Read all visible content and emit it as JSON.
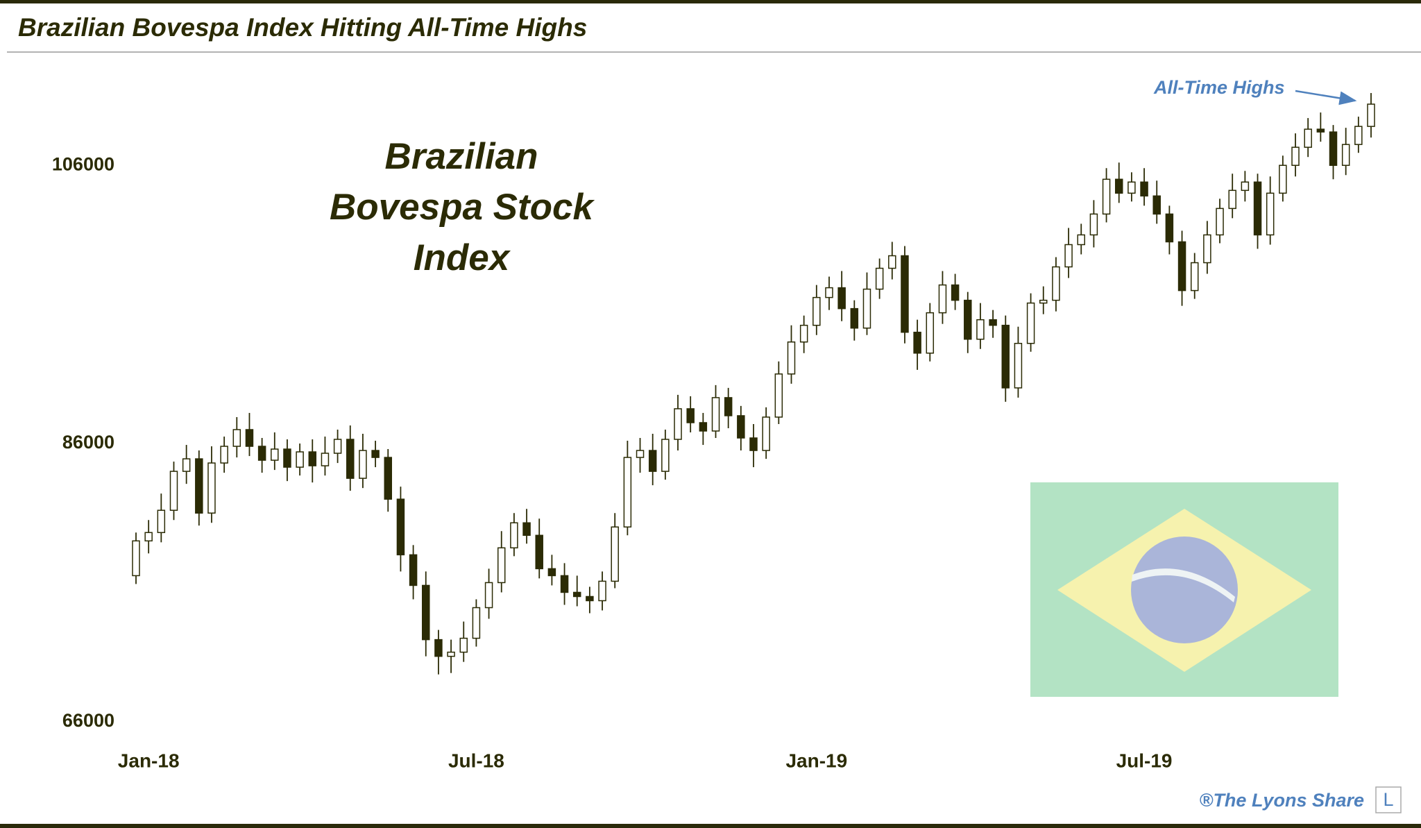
{
  "chart_data": {
    "type": "candlestick",
    "title": "Brazilian Bovespa Index Hitting All-Time Highs",
    "annotation_lines": [
      "Brazilian",
      "Bovespa Stock",
      "Index"
    ],
    "highlight_label": "All-Time Highs",
    "credit": "®The Lyons Share",
    "logo": "L",
    "color": "#2b2b05",
    "ylim": [
      62000,
      112000
    ],
    "yticks": [
      66000,
      86000,
      106000
    ],
    "categories": [
      null,
      "Jan-18",
      null,
      null,
      null,
      null,
      null,
      null,
      null,
      null,
      null,
      null,
      null,
      null,
      null,
      null,
      null,
      null,
      null,
      null,
      null,
      null,
      null,
      null,
      null,
      null,
      null,
      "Jul-18",
      null,
      null,
      null,
      null,
      null,
      null,
      null,
      null,
      null,
      null,
      null,
      null,
      null,
      null,
      null,
      null,
      null,
      null,
      null,
      null,
      null,
      null,
      null,
      null,
      null,
      null,
      "Jan-19",
      null,
      null,
      null,
      null,
      null,
      null,
      null,
      null,
      null,
      null,
      null,
      null,
      null,
      null,
      null,
      null,
      null,
      null,
      null,
      null,
      null,
      null,
      null,
      null,
      null,
      "Jul-19",
      null,
      null,
      null,
      null,
      null,
      null,
      null,
      null,
      null,
      null,
      null,
      null,
      null,
      null,
      null,
      null,
      null,
      null
    ],
    "open": [
      76500,
      79000,
      79600,
      81200,
      84000,
      84900,
      81000,
      84600,
      85800,
      87000,
      85800,
      84800,
      85600,
      84300,
      85400,
      84400,
      85300,
      86300,
      83500,
      85500,
      85000,
      82000,
      78000,
      75800,
      71900,
      70700,
      71000,
      72000,
      74200,
      76000,
      78500,
      80300,
      79400,
      77000,
      76500,
      75300,
      75000,
      74700,
      76100,
      80000,
      85000,
      85500,
      84000,
      86300,
      88500,
      87500,
      86900,
      89300,
      88000,
      86400,
      85500,
      87900,
      91000,
      93300,
      94500,
      96500,
      97200,
      95700,
      94300,
      97100,
      98600,
      99500,
      94000,
      92500,
      95400,
      97400,
      96300,
      93500,
      94900,
      94500,
      90000,
      93200,
      96100,
      96300,
      98700,
      100300,
      101000,
      102500,
      105000,
      104000,
      104800,
      103800,
      102500,
      100500,
      97000,
      99000,
      101000,
      102900,
      104200,
      104800,
      101000,
      104000,
      106000,
      107300,
      108600,
      108400,
      106000,
      107500,
      108800
    ],
    "high": [
      79600,
      80500,
      82400,
      84700,
      85900,
      85500,
      85800,
      86500,
      87900,
      88200,
      86400,
      86800,
      86300,
      86000,
      86300,
      86500,
      87000,
      87300,
      86700,
      86200,
      85600,
      82900,
      78700,
      76800,
      72600,
      71900,
      73200,
      74800,
      77000,
      79700,
      81000,
      81300,
      80600,
      78000,
      77400,
      76500,
      75700,
      76800,
      81000,
      86200,
      86400,
      86700,
      87000,
      89500,
      89400,
      88200,
      90200,
      90000,
      88700,
      87400,
      88600,
      91900,
      94500,
      95200,
      97400,
      98000,
      98400,
      96300,
      98300,
      99300,
      100500,
      100200,
      94900,
      96100,
      98400,
      98200,
      96900,
      96100,
      95600,
      95200,
      94400,
      96800,
      97300,
      99400,
      101500,
      101800,
      103500,
      105800,
      106200,
      105500,
      105800,
      104900,
      103100,
      101300,
      99700,
      102000,
      103600,
      105400,
      105600,
      105400,
      105200,
      106700,
      108300,
      109400,
      109800,
      108900,
      108700,
      109500,
      111200
    ],
    "low": [
      75900,
      78100,
      78900,
      80500,
      83100,
      80100,
      80300,
      83900,
      85000,
      85100,
      83900,
      84100,
      83300,
      83700,
      83200,
      83700,
      84600,
      82600,
      82800,
      84300,
      81100,
      76800,
      74800,
      70700,
      69400,
      69500,
      70300,
      71400,
      73400,
      75300,
      77900,
      78800,
      76300,
      75800,
      74400,
      74300,
      73800,
      74000,
      75600,
      79400,
      83900,
      83000,
      83400,
      85500,
      86800,
      85900,
      86400,
      87100,
      85500,
      84300,
      84900,
      87400,
      90300,
      92500,
      93800,
      95600,
      94800,
      93400,
      93800,
      96400,
      97800,
      93200,
      91300,
      91900,
      94600,
      95600,
      92500,
      92800,
      93600,
      89000,
      89300,
      92600,
      95300,
      95500,
      97900,
      99600,
      100100,
      101900,
      103300,
      103400,
      103100,
      101800,
      99600,
      95900,
      96400,
      98200,
      100400,
      102200,
      103400,
      100000,
      100300,
      103400,
      105200,
      106600,
      107700,
      105000,
      105300,
      106900,
      108000
    ],
    "close": [
      79000,
      79600,
      81200,
      84000,
      84900,
      81000,
      84600,
      85800,
      87000,
      85800,
      84800,
      85600,
      84300,
      85400,
      84400,
      85300,
      86300,
      83500,
      85500,
      85000,
      82000,
      78000,
      75800,
      71900,
      70700,
      71000,
      72000,
      74200,
      76000,
      78500,
      80300,
      79400,
      77000,
      76500,
      75300,
      75000,
      74700,
      76100,
      80000,
      85000,
      85500,
      84000,
      86300,
      88500,
      87500,
      86900,
      89300,
      88000,
      86400,
      85500,
      87900,
      91000,
      93300,
      94500,
      96500,
      97200,
      95700,
      94300,
      97100,
      98600,
      99500,
      94000,
      92500,
      95400,
      97400,
      96300,
      93500,
      94900,
      94500,
      90000,
      93200,
      96100,
      96300,
      98700,
      100300,
      101000,
      102500,
      105000,
      104000,
      104800,
      103800,
      102500,
      100500,
      97000,
      99000,
      101000,
      102900,
      104200,
      104800,
      101000,
      104000,
      106000,
      107300,
      108600,
      108400,
      106000,
      107500,
      108800,
      110400
    ]
  }
}
